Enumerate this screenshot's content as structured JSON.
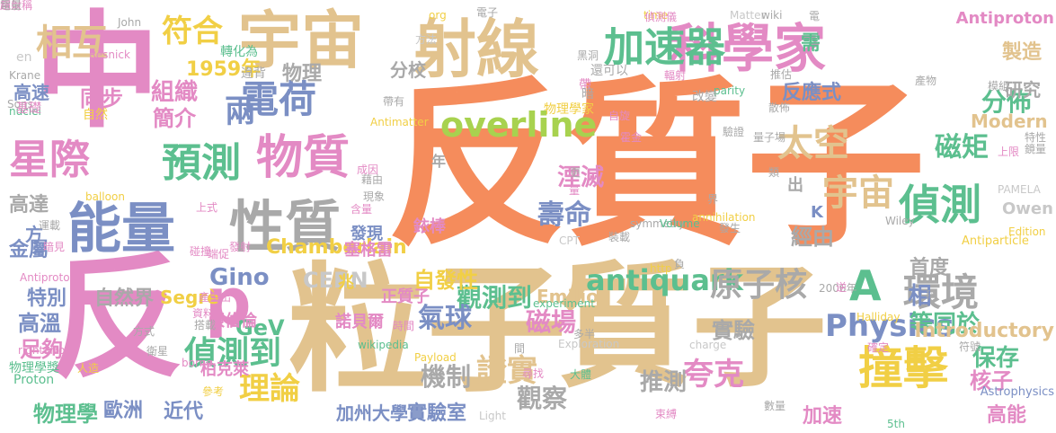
{
  "palette": {
    "orange": "#f58c5c",
    "tan": "#e2c38e",
    "pink": "#e38ac4",
    "blue": "#7b8fc4",
    "green": "#5cbf8f",
    "yellow": "#f1cf45",
    "gray": "#a9a9a9",
    "lightgray": "#c8c8c8",
    "lime": "#a8d24f"
  },
  "words": [
    {
      "t": "反質子",
      "c": "orange"
    },
    {
      "t": "中",
      "c": "pink"
    },
    {
      "t": "反",
      "c": "pink"
    },
    {
      "t": "粒子",
      "c": "tan"
    },
    {
      "t": "質子",
      "c": "tan"
    },
    {
      "t": "宇宙",
      "c": "tan"
    },
    {
      "t": "射線",
      "c": "tan"
    },
    {
      "t": "科學家",
      "c": "pink"
    },
    {
      "t": "加速器",
      "c": "green"
    },
    {
      "t": "能量",
      "c": "blue"
    },
    {
      "t": "性質",
      "c": "gray"
    },
    {
      "t": "物質",
      "c": "pink"
    },
    {
      "t": "電荷",
      "c": "blue"
    },
    {
      "t": "星際",
      "c": "pink"
    },
    {
      "t": "預測",
      "c": "green"
    },
    {
      "t": "偵測",
      "c": "green"
    },
    {
      "t": "撞擊",
      "c": "yellow"
    },
    {
      "t": "環境",
      "c": "gray"
    },
    {
      "t": "宇宙",
      "c": "tan"
    },
    {
      "t": "overline",
      "c": "lime"
    },
    {
      "t": "太空",
      "c": "tan"
    },
    {
      "t": "p",
      "c": "pink"
    },
    {
      "t": "A",
      "c": "green"
    },
    {
      "t": "相",
      "c": "blue"
    },
    {
      "t": "Physics",
      "c": "blue"
    },
    {
      "t": "antiquark",
      "c": "green"
    },
    {
      "t": "原子核",
      "c": "gray"
    },
    {
      "t": "偵測到",
      "c": "green"
    },
    {
      "t": "磁矩",
      "c": "green"
    },
    {
      "t": "兩",
      "c": "blue"
    },
    {
      "t": "壽命",
      "c": "blue"
    },
    {
      "t": "湮滅",
      "c": "pink"
    },
    {
      "t": "觀測到",
      "c": "green"
    },
    {
      "t": "夸克",
      "c": "pink"
    },
    {
      "t": "相互",
      "c": "tan"
    },
    {
      "t": "符合",
      "c": "yellow"
    },
    {
      "t": "理論",
      "c": "yellow"
    },
    {
      "t": "氣球",
      "c": "blue"
    },
    {
      "t": "磁場",
      "c": "pink"
    },
    {
      "t": "證實",
      "c": "tan"
    },
    {
      "t": "機制",
      "c": "gray"
    },
    {
      "t": "觀察",
      "c": "gray"
    },
    {
      "t": "推測",
      "c": "gray"
    },
    {
      "t": "保存",
      "c": "green"
    },
    {
      "t": "核子",
      "c": "pink"
    },
    {
      "t": "高能",
      "c": "pink"
    },
    {
      "t": "分佈",
      "c": "green"
    },
    {
      "t": "反應式",
      "c": "blue"
    },
    {
      "t": "製造",
      "c": "tan"
    },
    {
      "t": "研究",
      "c": "gray"
    },
    {
      "t": "實驗",
      "c": "gray"
    },
    {
      "t": "經由",
      "c": "gray"
    },
    {
      "t": "等同於",
      "c": "green"
    },
    {
      "t": "首度",
      "c": "gray"
    },
    {
      "t": "自發性",
      "c": "yellow"
    },
    {
      "t": "同步",
      "c": "pink"
    },
    {
      "t": "組織",
      "c": "pink"
    },
    {
      "t": "簡介",
      "c": "pink"
    },
    {
      "t": "高速",
      "c": "blue"
    },
    {
      "t": "1959年",
      "c": "yellow"
    },
    {
      "t": "物理",
      "c": "gray"
    },
    {
      "t": "分校",
      "c": "gray"
    },
    {
      "t": "CERN",
      "c": "lightgray"
    },
    {
      "t": "GeV",
      "c": "green"
    },
    {
      "t": "自然界",
      "c": "gray"
    },
    {
      "t": "特別",
      "c": "blue"
    },
    {
      "t": "高溫",
      "c": "blue"
    },
    {
      "t": "足夠",
      "c": "pink"
    },
    {
      "t": "金屬",
      "c": "blue"
    },
    {
      "t": "高達",
      "c": "gray"
    },
    {
      "t": "物理學",
      "c": "green"
    },
    {
      "t": "歐洲",
      "c": "blue"
    },
    {
      "t": "近代",
      "c": "blue"
    },
    {
      "t": "加州大學",
      "c": "blue"
    },
    {
      "t": "實驗室",
      "c": "blue"
    },
    {
      "t": "加速",
      "c": "pink"
    },
    {
      "t": "Modern",
      "c": "tan"
    },
    {
      "t": "Introductory",
      "c": "tan"
    },
    {
      "t": "Emilio",
      "c": "tan"
    },
    {
      "t": "Segrè",
      "c": "yellow"
    },
    {
      "t": "Chamberlain",
      "c": "yellow"
    },
    {
      "t": "Owen",
      "c": "lightgray"
    },
    {
      "t": "Edition",
      "c": "yellow"
    },
    {
      "t": "Antiproton",
      "c": "pink"
    },
    {
      "t": "Antiparticle",
      "c": "yellow"
    },
    {
      "t": "PAMELA",
      "c": "lightgray"
    },
    {
      "t": "Astrophysics",
      "c": "blue"
    },
    {
      "t": "Antiproton2",
      "c": "pink"
    },
    {
      "t": "rightarrow",
      "c": "pink"
    },
    {
      "t": "Proton",
      "c": "green"
    },
    {
      "t": "物理學獎",
      "c": "green"
    },
    {
      "t": "柏克萊",
      "c": "pink"
    },
    {
      "t": "張伯倫",
      "c": "pink"
    },
    {
      "t": "正質子",
      "c": "pink"
    },
    {
      "t": "銥棒",
      "c": "pink"
    },
    {
      "t": "塞格雷",
      "c": "pink"
    },
    {
      "t": "諾貝爾",
      "c": "pink"
    },
    {
      "t": "發現",
      "c": "blue"
    },
    {
      "t": "Gino",
      "c": "blue"
    },
    {
      "t": "方",
      "c": "blue"
    },
    {
      "t": "需",
      "c": "green"
    },
    {
      "t": "出",
      "c": "gray"
    },
    {
      "t": "K",
      "c": "blue"
    },
    {
      "t": "兆",
      "c": "yellow"
    },
    {
      "t": "年",
      "c": "gray"
    },
    {
      "t": "物理學家",
      "c": "yellow"
    },
    {
      "t": "Antimatter",
      "c": "yellow"
    },
    {
      "t": "parity",
      "c": "green"
    },
    {
      "t": "Matter",
      "c": "lightgray"
    },
    {
      "t": "wiki",
      "c": "gray"
    },
    {
      "t": "symmetry",
      "c": "gray"
    },
    {
      "t": "Volume",
      "c": "green"
    },
    {
      "t": "annihilation",
      "c": "yellow"
    },
    {
      "t": "CPT",
      "c": "lightgray"
    },
    {
      "t": "experiment",
      "c": "green"
    },
    {
      "t": "Payload",
      "c": "yellow"
    },
    {
      "t": "Exploration",
      "c": "lightgray"
    },
    {
      "t": "Light",
      "c": "lightgray"
    },
    {
      "t": "Wiley",
      "c": "gray"
    },
    {
      "t": "Halliday",
      "c": "yellow"
    },
    {
      "t": "charge",
      "c": "lightgray"
    },
    {
      "t": "time",
      "c": "yellow"
    },
    {
      "t": "Resnick",
      "c": "pink"
    },
    {
      "t": "Krane",
      "c": "gray"
    },
    {
      "t": "John",
      "c": "gray"
    },
    {
      "t": "org",
      "c": "yellow"
    },
    {
      "t": "Sons",
      "c": "gray"
    },
    {
      "t": "nuclei",
      "c": "green"
    },
    {
      "t": "balloon",
      "c": "yellow"
    },
    {
      "t": "borne",
      "c": "pink"
    },
    {
      "t": "wikipedia",
      "c": "green"
    },
    {
      "t": "http",
      "c": "yellow"
    },
    {
      "t": "2006年",
      "c": "gray"
    },
    {
      "t": "5th",
      "c": "green"
    },
    {
      "t": "en",
      "c": "lightgray"
    },
    {
      "t": "基礎",
      "c": "pink"
    },
    {
      "t": "自然",
      "c": "yellow"
    },
    {
      "t": "轉化為",
      "c": "green"
    },
    {
      "t": "違背",
      "c": "gray"
    },
    {
      "t": "帶有",
      "c": "gray"
    },
    {
      "t": "方法",
      "c": "lightgray"
    },
    {
      "t": "電子",
      "c": "gray"
    },
    {
      "t": "黑洞",
      "c": "gray"
    },
    {
      "t": "還可以",
      "c": "gray"
    },
    {
      "t": "帶",
      "c": "pink"
    },
    {
      "t": "暗",
      "c": "gray"
    },
    {
      "t": "自旋",
      "c": "pink"
    },
    {
      "t": "霍金",
      "c": "pink"
    },
    {
      "t": "偵測儀",
      "c": "pink"
    },
    {
      "t": "輻射",
      "c": "pink"
    },
    {
      "t": "改變",
      "c": "gray"
    },
    {
      "t": "驗證",
      "c": "gray"
    },
    {
      "t": "散佈",
      "c": "gray"
    },
    {
      "t": "推估",
      "c": "gray"
    },
    {
      "t": "產物",
      "c": "gray"
    },
    {
      "t": "模組",
      "c": "gray"
    },
    {
      "t": "量子場",
      "c": "gray"
    },
    {
      "t": "上限",
      "c": "pink"
    },
    {
      "t": "鏡量",
      "c": "gray"
    },
    {
      "t": "特性",
      "c": "gray"
    },
    {
      "t": "類",
      "c": "gray"
    },
    {
      "t": "電",
      "c": "gray"
    },
    {
      "t": "成因",
      "c": "pink"
    },
    {
      "t": "更",
      "c": "gray"
    },
    {
      "t": "量",
      "c": "pink"
    },
    {
      "t": "界",
      "c": "gray"
    },
    {
      "t": "發生",
      "c": "gray"
    },
    {
      "t": "裝載",
      "c": "gray"
    },
    {
      "t": "負",
      "c": "gray"
    },
    {
      "t": "逆",
      "c": "pink"
    },
    {
      "t": "稱",
      "c": "gray"
    },
    {
      "t": "確定",
      "c": "pink"
    },
    {
      "t": "符號",
      "c": "gray"
    },
    {
      "t": "束縛",
      "c": "pink"
    },
    {
      "t": "數量",
      "c": "gray"
    },
    {
      "t": "多半",
      "c": "gray"
    },
    {
      "t": "時間",
      "c": "pink"
    },
    {
      "t": "間",
      "c": "gray"
    },
    {
      "t": "尋找",
      "c": "pink"
    },
    {
      "t": "大體",
      "c": "green"
    },
    {
      "t": "搭載",
      "c": "gray"
    },
    {
      "t": "衛星",
      "c": "gray"
    },
    {
      "t": "方式",
      "c": "gray"
    },
    {
      "t": "產生出",
      "c": "pink"
    },
    {
      "t": "資料",
      "c": "pink"
    },
    {
      "t": "碰撞",
      "c": "pink"
    },
    {
      "t": "端促",
      "c": "pink"
    },
    {
      "t": "發射",
      "c": "pink"
    },
    {
      "t": "含量",
      "c": "pink"
    },
    {
      "t": "現象",
      "c": "gray"
    },
    {
      "t": "藉由",
      "c": "gray"
    },
    {
      "t": "上式",
      "c": "pink"
    },
    {
      "t": "運載",
      "c": "gray"
    },
    {
      "t": "暗見",
      "c": "pink"
    },
    {
      "t": "參考",
      "c": "yellow"
    },
    {
      "t": "人造",
      "c": "yellow"
    },
    {
      "t": "用以",
      "c": "pink"
    },
    {
      "t": "超射稱",
      "c": "pink"
    },
    {
      "t": "電量",
      "c": "gray"
    }
  ]
}
